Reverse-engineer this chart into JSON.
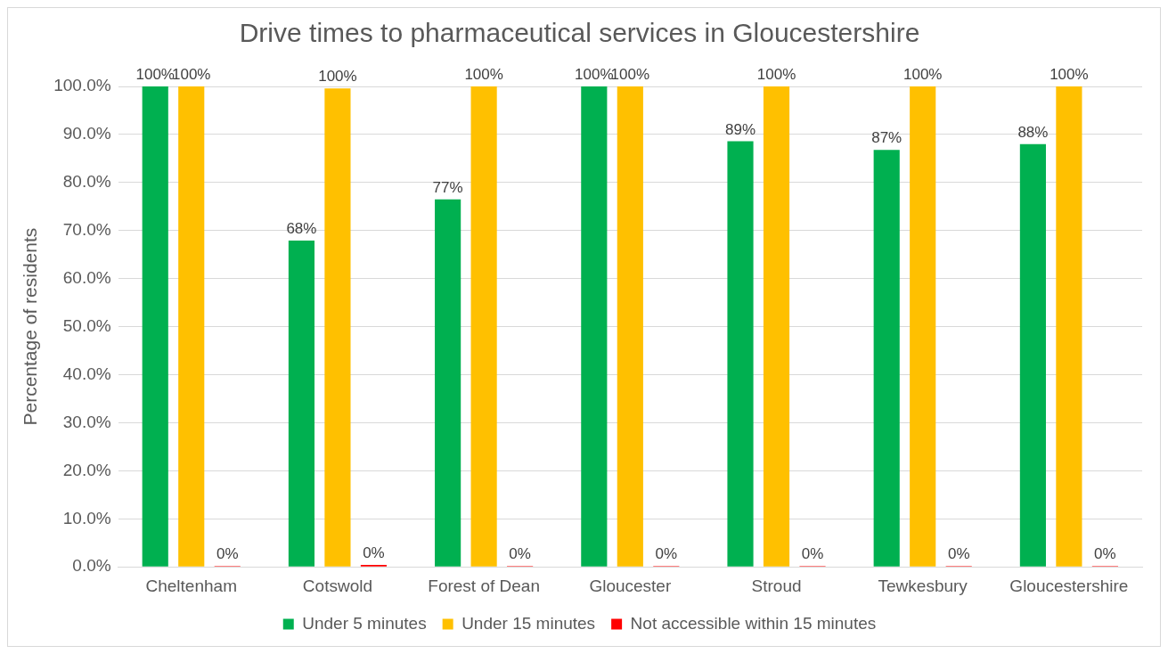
{
  "chart_data": {
    "type": "bar",
    "title": "Drive times to pharmaceutical services in Gloucestershire",
    "ylabel": "Percentage of residents",
    "categories": [
      "Cheltenham",
      "Cotswold",
      "Forest of Dean",
      "Gloucester",
      "Stroud",
      "Tewkesbury",
      "Gloucestershire"
    ],
    "series": [
      {
        "name": "Under 5 minutes",
        "color": "#00b050",
        "values": [
          100,
          67.9,
          76.5,
          100,
          88.6,
          86.8,
          88.0
        ],
        "value_labels": [
          "100%",
          "68%",
          "77%",
          "100%",
          "89%",
          "87%",
          "88%"
        ]
      },
      {
        "name": "Under 15 minutes",
        "color": "#ffc000",
        "values": [
          100,
          99.6,
          100,
          100,
          100,
          100,
          100
        ],
        "value_labels": [
          "100%",
          "100%",
          "100%",
          "100%",
          "100%",
          "100%",
          "100%"
        ]
      },
      {
        "name": "Not accessible within 15 minutes",
        "color": "#ff0000",
        "values": [
          0,
          0.4,
          0,
          0,
          0,
          0,
          0.1
        ],
        "value_labels": [
          "0%",
          "0%",
          "0%",
          "0%",
          "0%",
          "0%",
          "0%"
        ]
      }
    ],
    "ylim": [
      0,
      100
    ],
    "yticks": [
      {
        "value": 0,
        "label": "0.0%"
      },
      {
        "value": 10,
        "label": "10.0%"
      },
      {
        "value": 20,
        "label": "20.0%"
      },
      {
        "value": 30,
        "label": "30.0%"
      },
      {
        "value": 40,
        "label": "40.0%"
      },
      {
        "value": 50,
        "label": "50.0%"
      },
      {
        "value": 60,
        "label": "60.0%"
      },
      {
        "value": 70,
        "label": "70.0%"
      },
      {
        "value": 80,
        "label": "80.0%"
      },
      {
        "value": 90,
        "label": "90.0%"
      },
      {
        "value": 100,
        "label": "100.0%"
      }
    ],
    "grid": "y",
    "legend": "bottom"
  }
}
